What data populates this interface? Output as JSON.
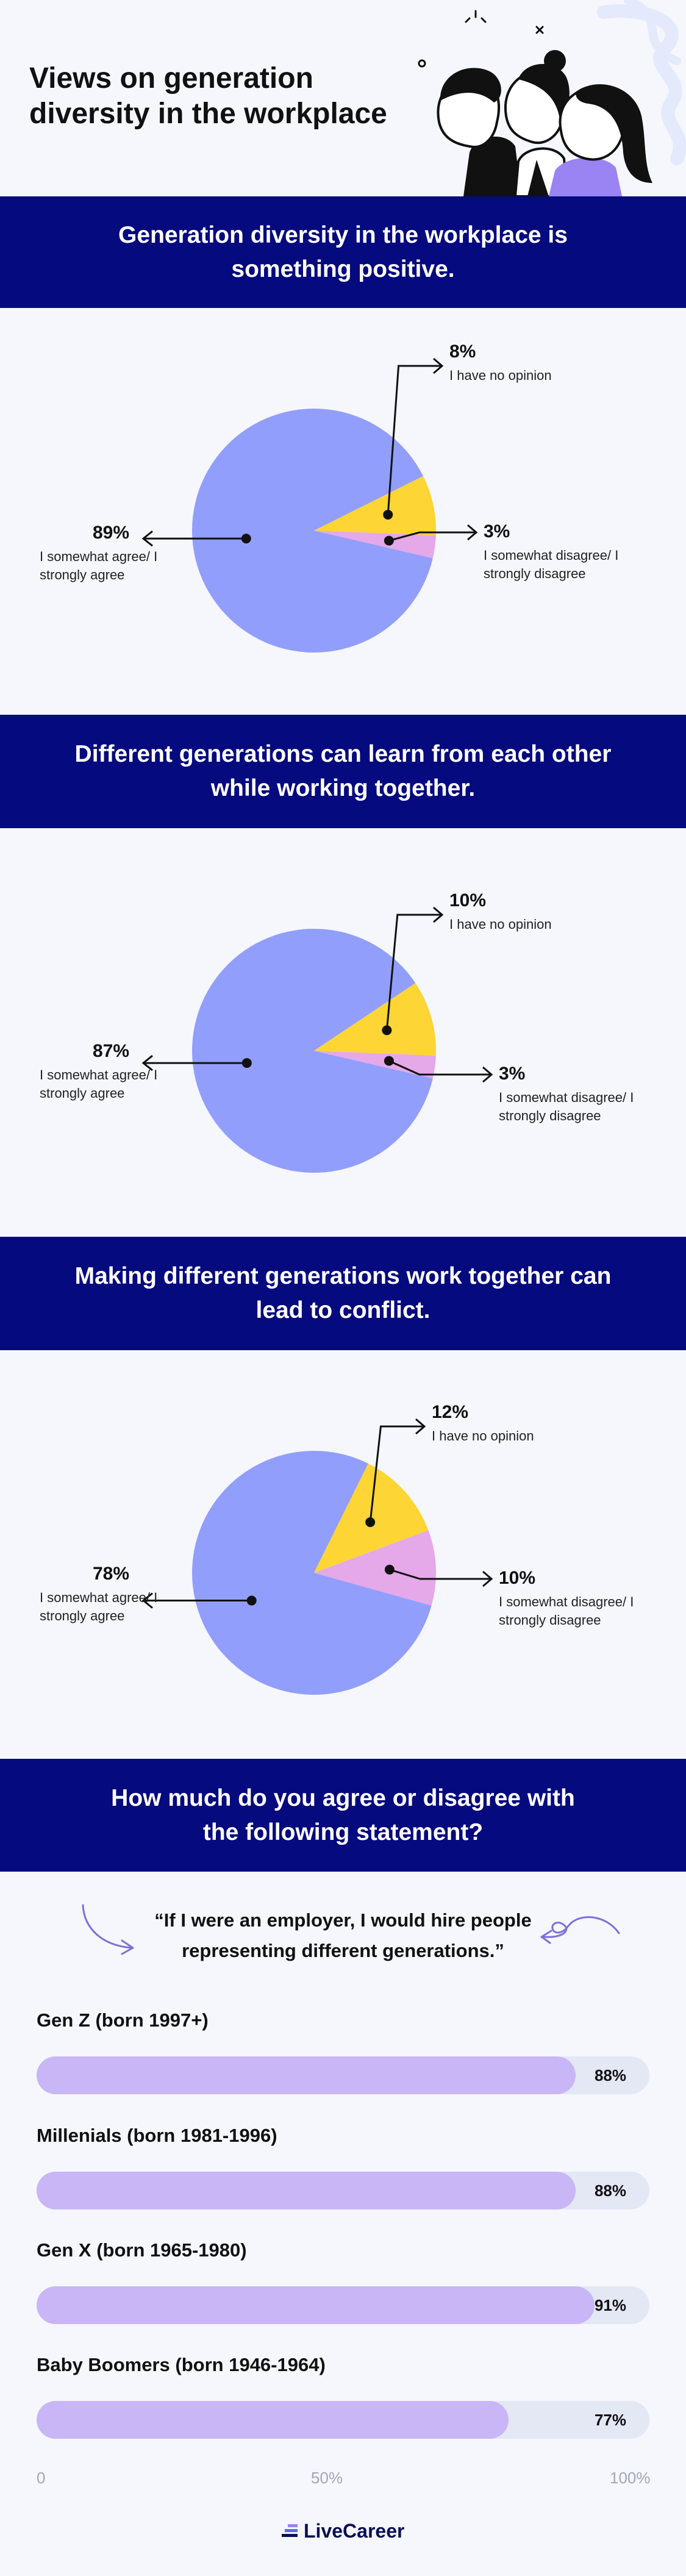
{
  "header": {
    "title": "Views on generation diversity in the workplace"
  },
  "colors": {
    "agree": "#929efb",
    "no_opinion": "#fdd535",
    "disagree": "#e5a8e9",
    "banner": "#050a7e",
    "bar_fill": "#c8b6f6",
    "bar_track": "#e4e7f4"
  },
  "sections": [
    {
      "title": "Generation diversity in the workplace is something positive."
    },
    {
      "title": "Different generations can learn from each other while working together."
    },
    {
      "title": "Making different generations work together can lead to conflict."
    },
    {
      "title": "How much do you agree or disagree with the following statement?"
    }
  ],
  "chart_data": [
    {
      "type": "pie",
      "title": "Generation diversity in the workplace is something positive.",
      "slices": [
        {
          "name": "I somewhat agree/ I strongly agree",
          "value": 89,
          "label": "89%"
        },
        {
          "name": "I have no opinion",
          "value": 8,
          "label": "8%"
        },
        {
          "name": "I somewhat disagree/ I strongly disagree",
          "value": 3,
          "label": "3%"
        }
      ]
    },
    {
      "type": "pie",
      "title": "Different generations can learn from each other while working together.",
      "slices": [
        {
          "name": "I somewhat agree/ I strongly agree",
          "value": 87,
          "label": "87%"
        },
        {
          "name": "I have no opinion",
          "value": 10,
          "label": "10%"
        },
        {
          "name": "I somewhat disagree/ I strongly disagree",
          "value": 3,
          "label": "3%"
        }
      ]
    },
    {
      "type": "pie",
      "title": "Making different generations work together can lead to conflict.",
      "slices": [
        {
          "name": "I somewhat agree/ I strongly agree",
          "value": 78,
          "label": "78%"
        },
        {
          "name": "I have no opinion",
          "value": 12,
          "label": "12%"
        },
        {
          "name": "I somewhat disagree/ I strongly disagree",
          "value": 10,
          "label": "10%"
        }
      ]
    },
    {
      "type": "bar",
      "title": "How much do you agree or disagree with the following statement?",
      "subtitle": "“If I were an employer, I would hire people representing different generations.”",
      "categories": [
        "Gen Z (born 1997+)",
        "Millenials (born 1981-1996)",
        "Gen X (born 1965-1980)",
        "Baby Boomers (born 1946-1964)"
      ],
      "values": [
        88,
        88,
        91,
        77
      ],
      "value_labels": [
        "88%",
        "88%",
        "91%",
        "77%"
      ],
      "xlim": [
        0,
        100
      ],
      "x_ticks": [
        "0",
        "50%",
        "100%"
      ]
    }
  ],
  "footer": {
    "brand": "LiveCareer"
  }
}
